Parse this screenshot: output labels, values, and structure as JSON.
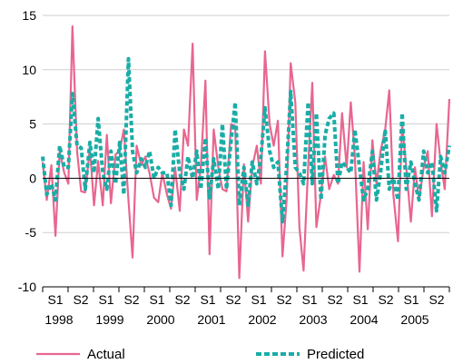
{
  "chart_data": {
    "type": "line",
    "title": "",
    "xlabel": "",
    "ylabel": "",
    "ylim": [
      -10,
      15
    ],
    "yticks": [
      -10,
      -5,
      0,
      5,
      10,
      15
    ],
    "grid": "horizontal",
    "legend_position": "bottom",
    "x_tick_labels": [
      {
        "half": "S1",
        "year": "1998"
      },
      {
        "half": "S2",
        "year": ""
      },
      {
        "half": "S1",
        "year": "1999"
      },
      {
        "half": "S2",
        "year": ""
      },
      {
        "half": "S1",
        "year": "2000"
      },
      {
        "half": "S2",
        "year": ""
      },
      {
        "half": "S1",
        "year": "2001"
      },
      {
        "half": "S2",
        "year": ""
      },
      {
        "half": "S1",
        "year": "2002"
      },
      {
        "half": "S2",
        "year": ""
      },
      {
        "half": "S1",
        "year": "2003"
      },
      {
        "half": "S2",
        "year": ""
      },
      {
        "half": "S1",
        "year": "2004"
      },
      {
        "half": "S2",
        "year": ""
      },
      {
        "half": "S1",
        "year": "2005"
      },
      {
        "half": "S2",
        "year": ""
      }
    ],
    "x": [
      1998.0,
      1998.08,
      1998.17,
      1998.25,
      1998.33,
      1998.42,
      1998.5,
      1998.58,
      1998.67,
      1998.75,
      1998.83,
      1998.92,
      1999.0,
      1999.08,
      1999.17,
      1999.25,
      1999.33,
      1999.42,
      1999.5,
      1999.58,
      1999.67,
      1999.75,
      1999.83,
      1999.92,
      2000.0,
      2000.08,
      2000.17,
      2000.25,
      2000.33,
      2000.42,
      2000.5,
      2000.58,
      2000.67,
      2000.75,
      2000.83,
      2000.92,
      2001.0,
      2001.08,
      2001.17,
      2001.25,
      2001.33,
      2001.42,
      2001.5,
      2001.58,
      2001.67,
      2001.75,
      2001.83,
      2001.92,
      2002.0,
      2002.08,
      2002.17,
      2002.25,
      2002.33,
      2002.42,
      2002.5,
      2002.58,
      2002.67,
      2002.75,
      2002.83,
      2002.92,
      2003.0,
      2003.08,
      2003.17,
      2003.25,
      2003.33,
      2003.42,
      2003.5,
      2003.58,
      2003.67,
      2003.75,
      2003.83,
      2003.92,
      2004.0,
      2004.08,
      2004.17,
      2004.25,
      2004.33,
      2004.42,
      2004.5,
      2004.58,
      2004.67,
      2004.75,
      2004.83,
      2004.92,
      2005.0,
      2005.08,
      2005.17,
      2005.25,
      2005.33,
      2005.42,
      2005.5,
      2005.58,
      2005.67,
      2005.75,
      2005.83,
      2005.92
    ],
    "series": [
      {
        "name": "Actual",
        "color": "#e8668f",
        "style": "solid",
        "values": [
          1.5,
          -2.0,
          1.2,
          -5.3,
          2.5,
          0.5,
          -0.5,
          14.0,
          2.5,
          -1.2,
          -1.3,
          2.8,
          -2.5,
          1.6,
          -2.5,
          4.0,
          -2.3,
          2.2,
          2.5,
          4.5,
          -2.0,
          -7.3,
          3.0,
          1.2,
          2.0,
          0.5,
          -1.8,
          -2.2,
          0.5,
          -1.5,
          -2.8,
          1.0,
          -3.0,
          4.5,
          3.0,
          12.4,
          -2.0,
          1.0,
          9.0,
          -7.0,
          4.5,
          1.0,
          -1.0,
          -1.2,
          5.0,
          4.8,
          -9.2,
          1.3,
          -4.0,
          1.0,
          3.0,
          -0.5,
          11.7,
          5.0,
          3.0,
          5.3,
          -7.2,
          -2.0,
          10.6,
          7.0,
          -4.5,
          -8.5,
          1.0,
          8.8,
          -4.5,
          -1.5,
          2.0,
          -1.0,
          0.3,
          -0.5,
          6.0,
          1.0,
          7.0,
          2.0,
          -8.6,
          1.5,
          -4.7,
          3.5,
          -0.5,
          2.5,
          4.5,
          8.1,
          -1.5,
          -5.8,
          5.0,
          1.0,
          -4.0,
          1.0,
          -2.0,
          1.0,
          2.5,
          -3.5,
          5.0,
          1.5,
          -1.0,
          7.3
        ]
      },
      {
        "name": "Predicted",
        "color": "#1aada6",
        "style": "dashed",
        "values": [
          2.0,
          -1.5,
          -0.5,
          -2.0,
          3.0,
          1.0,
          1.0,
          7.8,
          3.0,
          2.8,
          -1.0,
          3.3,
          0.5,
          5.5,
          0.5,
          -1.0,
          2.5,
          -0.5,
          3.3,
          -1.5,
          11.0,
          2.5,
          0.5,
          1.8,
          1.0,
          2.5,
          0.0,
          1.0,
          0.5,
          0.5,
          -2.5,
          4.5,
          0.5,
          -1.0,
          2.0,
          0.0,
          2.5,
          -1.0,
          3.7,
          -1.8,
          1.8,
          -1.0,
          5.0,
          -1.0,
          3.5,
          7.0,
          -2.5,
          1.0,
          -2.5,
          1.5,
          -0.5,
          2.0,
          6.5,
          2.5,
          1.0,
          1.5,
          -4.0,
          1.0,
          8.0,
          1.0,
          0.5,
          -0.5,
          7.0,
          -0.5,
          6.0,
          -2.0,
          4.0,
          5.5,
          6.0,
          -0.5,
          1.5,
          1.0,
          0.5,
          4.5,
          1.0,
          -2.0,
          -1.0,
          2.5,
          -2.0,
          0.5,
          4.5,
          -1.0,
          0.0,
          -2.0,
          6.0,
          -1.0,
          1.5,
          -0.5,
          -2.0,
          2.5,
          0.5,
          1.5,
          -3.0,
          2.0,
          0.5,
          3.0
        ]
      }
    ]
  }
}
